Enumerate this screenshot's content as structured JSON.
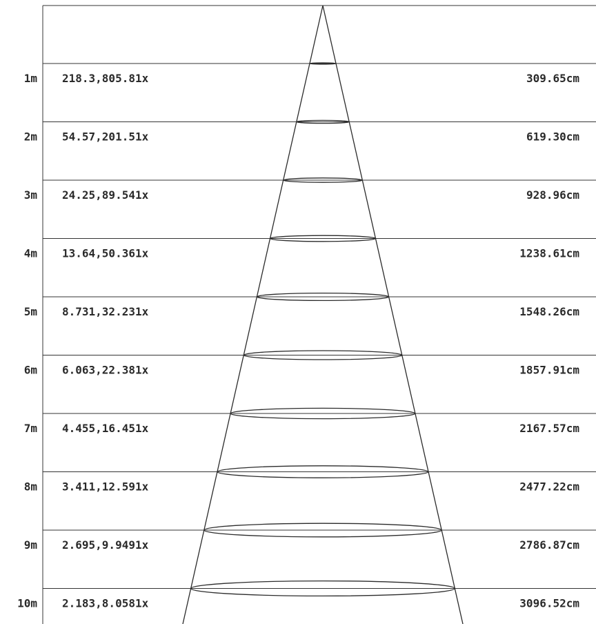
{
  "rows": [
    {
      "distance": "1m",
      "illuminance": "218.3,805.81x",
      "diameter": "309.65cm"
    },
    {
      "distance": "2m",
      "illuminance": "54.57,201.51x",
      "diameter": "619.30cm"
    },
    {
      "distance": "3m",
      "illuminance": "24.25,89.541x",
      "diameter": "928.96cm"
    },
    {
      "distance": "4m",
      "illuminance": "13.64,50.361x",
      "diameter": "1238.61cm"
    },
    {
      "distance": "5m",
      "illuminance": "8.731,32.231x",
      "diameter": "1548.26cm"
    },
    {
      "distance": "6m",
      "illuminance": "6.063,22.381x",
      "diameter": "1857.91cm"
    },
    {
      "distance": "7m",
      "illuminance": "4.455,16.451x",
      "diameter": "2167.57cm"
    },
    {
      "distance": "8m",
      "illuminance": "3.411,12.591x",
      "diameter": "2477.22cm"
    },
    {
      "distance": "9m",
      "illuminance": "2.695,9.9491x",
      "diameter": "2786.87cm"
    },
    {
      "distance": "10m",
      "illuminance": "2.183,8.0581x",
      "diameter": "3096.52cm"
    }
  ],
  "colors": {
    "line": "#333333",
    "text": "#2a2a2a",
    "background": "#ffffff"
  }
}
